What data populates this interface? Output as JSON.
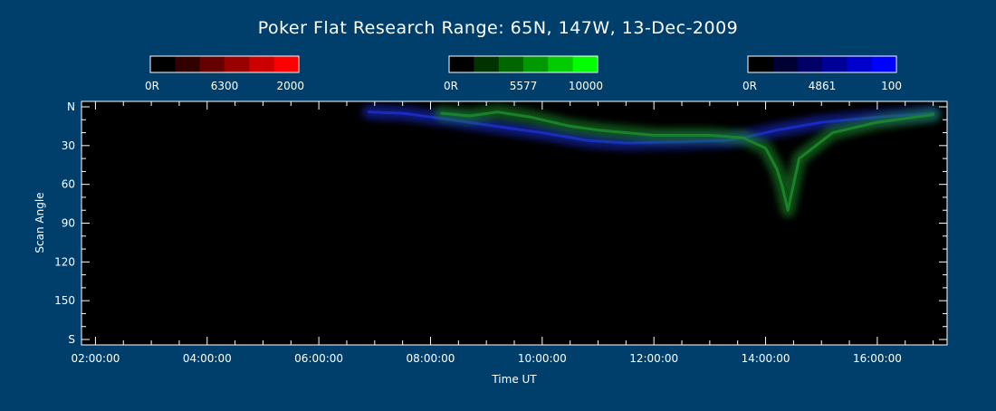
{
  "chart_data": {
    "type": "heatmap",
    "title": "Poker Flat Research Range: 65N, 147W, 13-Dec-2009",
    "xlabel": "Time UT",
    "ylabel": "Scan Angle",
    "x_ticks": [
      "02:00:00",
      "04:00:00",
      "06:00:00",
      "08:00:00",
      "10:00:00",
      "12:00:00",
      "14:00:00",
      "16:00:00"
    ],
    "x_tick_hours": [
      2,
      4,
      6,
      8,
      10,
      12,
      14,
      16
    ],
    "xlim": [
      1.75,
      17.25
    ],
    "y_ticks": [
      "N",
      "30",
      "60",
      "90",
      "120",
      "150",
      "S"
    ],
    "y_tick_values": [
      0,
      30,
      60,
      90,
      120,
      150,
      180
    ],
    "ylim": [
      0,
      180
    ],
    "colorbars": [
      {
        "name": "6300",
        "min_label": "0R",
        "mid_label": "6300",
        "max_label": "2000",
        "colors": [
          "#000000",
          "#330000",
          "#660000",
          "#990000",
          "#cc0000",
          "#ff0000"
        ]
      },
      {
        "name": "5577",
        "min_label": "0R",
        "mid_label": "5577",
        "max_label": "10000",
        "colors": [
          "#000000",
          "#003300",
          "#006600",
          "#009900",
          "#00cc00",
          "#00ff00"
        ]
      },
      {
        "name": "4861",
        "min_label": "0R",
        "mid_label": "4861",
        "max_label": "100",
        "colors": [
          "#000000",
          "#000033",
          "#000066",
          "#000099",
          "#0000cc",
          "#0000ff"
        ]
      }
    ],
    "emission_features": [
      {
        "name": "4861",
        "color": "#1a2fd6",
        "points": [
          [
            6.9,
            4
          ],
          [
            7.5,
            5
          ],
          [
            8.2,
            9
          ],
          [
            9.0,
            14
          ],
          [
            10.0,
            20
          ],
          [
            10.8,
            26
          ],
          [
            11.5,
            28
          ],
          [
            12.5,
            27
          ],
          [
            13.3,
            26
          ],
          [
            13.7,
            23
          ],
          [
            14.2,
            18
          ],
          [
            15.0,
            12
          ],
          [
            16.0,
            8
          ],
          [
            17.0,
            5
          ]
        ]
      },
      {
        "name": "5577",
        "color": "#1c8f2a",
        "points": [
          [
            8.2,
            5
          ],
          [
            8.7,
            7
          ],
          [
            9.2,
            4
          ],
          [
            9.8,
            8
          ],
          [
            10.5,
            15
          ],
          [
            11.0,
            18
          ],
          [
            12.0,
            22
          ],
          [
            13.0,
            22
          ],
          [
            13.6,
            24
          ],
          [
            14.0,
            32
          ],
          [
            14.2,
            48
          ],
          [
            14.3,
            62
          ],
          [
            14.4,
            80
          ],
          [
            14.6,
            40
          ],
          [
            15.2,
            20
          ],
          [
            16.0,
            12
          ],
          [
            17.0,
            6
          ]
        ]
      }
    ],
    "grid": false
  }
}
